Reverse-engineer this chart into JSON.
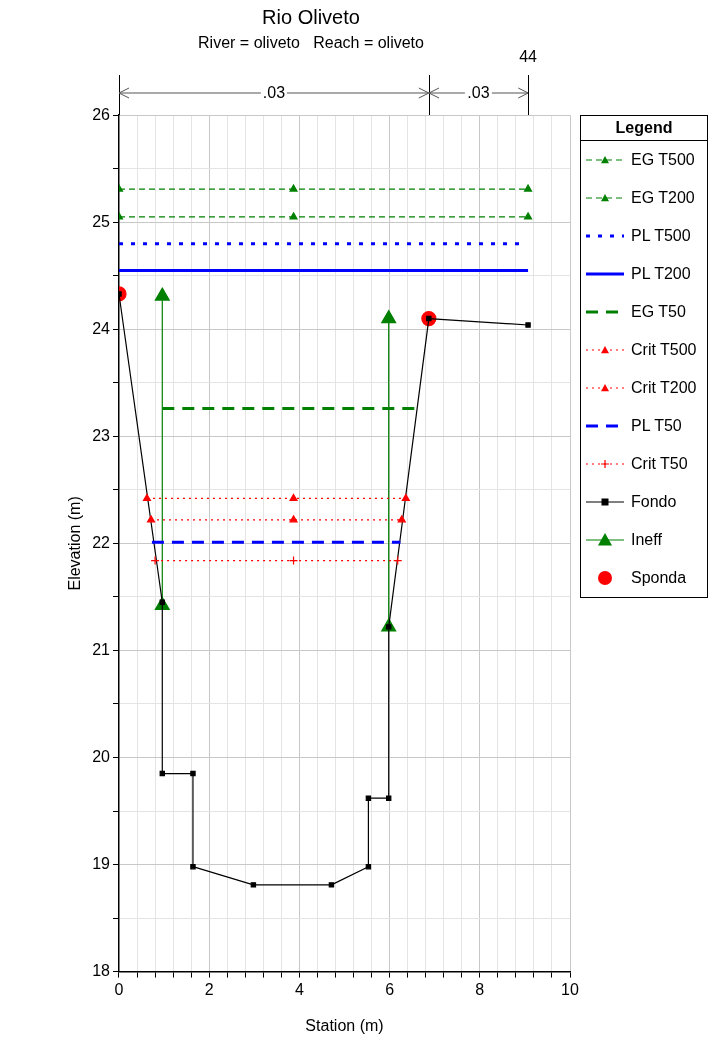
{
  "chart_data": {
    "type": "line",
    "title": "Rio Oliveto",
    "subtitle": "River = oliveto   Reach = oliveto",
    "xlabel": "Station (m)",
    "ylabel": "Elevation (m)",
    "legend_title": "Legend",
    "legend": "right",
    "grid": true,
    "xlim": [
      0,
      10
    ],
    "ylim": [
      18,
      26
    ],
    "xticks": [
      0,
      {
        "value": 0.4,
        "label": null
      },
      {
        "value": 0.8,
        "label": null
      },
      {
        "value": 1.2,
        "label": null
      },
      {
        "value": 1.6,
        "label": null
      },
      2,
      {
        "value": 2.4,
        "label": null
      },
      {
        "value": 2.8,
        "label": null
      },
      {
        "value": 3.2,
        "label": null
      },
      {
        "value": 3.6,
        "label": null
      },
      4,
      {
        "value": 4.4,
        "label": null
      },
      {
        "value": 4.8,
        "label": null
      },
      {
        "value": 5.2,
        "label": null
      },
      {
        "value": 5.6,
        "label": null
      },
      6,
      {
        "value": 6.4,
        "label": null
      },
      {
        "value": 6.8,
        "label": null
      },
      {
        "value": 7.2,
        "label": null
      },
      {
        "value": 7.6,
        "label": null
      },
      8,
      {
        "value": 8.4,
        "label": null
      },
      {
        "value": 8.8,
        "label": null
      },
      {
        "value": 9.2,
        "label": null
      },
      {
        "value": 9.6,
        "label": null
      },
      10
    ],
    "yticks": [
      18,
      {
        "value": 18.5,
        "label": null
      },
      19,
      {
        "value": 19.5,
        "label": null
      },
      20,
      {
        "value": 20.5,
        "label": null
      },
      21,
      {
        "value": 21.5,
        "label": null
      },
      22,
      {
        "value": 22.5,
        "label": null
      },
      23,
      {
        "value": 23.5,
        "label": null
      },
      24,
      {
        "value": 24.5,
        "label": null
      },
      25,
      {
        "value": 25.5,
        "label": null
      },
      26
    ],
    "annotations": [
      ".03",
      ".03",
      "44"
    ],
    "series": [
      {
        "name": "EG T500",
        "type": "line",
        "color": "#008000",
        "line_style": "dashed",
        "marker": "triangle",
        "x": [
          0,
          3.87,
          9.07
        ],
        "values": [
          25.31,
          25.31,
          25.31
        ]
      },
      {
        "name": "EG T200",
        "type": "line",
        "color": "#008000",
        "line_style": "dashed",
        "marker": "triangle",
        "x": [
          0,
          3.87,
          9.07
        ],
        "values": [
          25.05,
          25.05,
          25.05
        ]
      },
      {
        "name": "PL T500",
        "type": "line",
        "color": "#0000ff",
        "line_style": "dotted",
        "marker": "none",
        "x": [
          0,
          8.96
        ],
        "values": [
          24.8,
          24.8
        ]
      },
      {
        "name": "PL T200",
        "type": "line",
        "color": "#0000ff",
        "line_style": "solid",
        "marker": "none",
        "x": [
          0,
          9.07
        ],
        "values": [
          24.55,
          24.55
        ]
      },
      {
        "name": "EG T50",
        "type": "line",
        "color": "#008000",
        "line_style": "dashed",
        "marker": "none",
        "x": [
          0.96,
          6.58
        ],
        "values": [
          23.26,
          23.26
        ]
      },
      {
        "name": "Crit T500",
        "type": "line",
        "color": "#ff0000",
        "line_style": "dotted",
        "marker": "triangle",
        "x": [
          0.62,
          3.87,
          6.36
        ],
        "values": [
          22.42,
          22.42,
          22.42
        ]
      },
      {
        "name": "Crit T200",
        "type": "line",
        "color": "#ff0000",
        "line_style": "dotted",
        "marker": "triangle",
        "x": [
          0.71,
          3.87,
          6.27
        ],
        "values": [
          22.22,
          22.22,
          22.22
        ]
      },
      {
        "name": "PL T50",
        "type": "line",
        "color": "#0000ff",
        "line_style": "dashed",
        "marker": "none",
        "x": [
          0.73,
          6.24
        ],
        "values": [
          22.01,
          22.01
        ]
      },
      {
        "name": "Crit T50",
        "type": "line",
        "color": "#ff0000",
        "line_style": "dotted",
        "marker": "cross",
        "x": [
          0.8,
          3.87,
          6.18
        ],
        "values": [
          21.84,
          21.84,
          21.84
        ]
      },
      {
        "name": "Fondo",
        "type": "line",
        "color": "#000000",
        "line_style": "solid",
        "marker": "square",
        "x": [
          0,
          0.96,
          0.96,
          1.64,
          1.64,
          2.98,
          4.71,
          5.53,
          5.53,
          5.98,
          5.98,
          6.87,
          9.07
        ],
        "values": [
          24.33,
          21.45,
          19.85,
          19.85,
          18.98,
          18.81,
          18.81,
          18.98,
          19.62,
          19.62,
          21.22,
          24.1,
          24.04
        ]
      },
      {
        "name": "Ineff",
        "type": "line",
        "color": "#008000",
        "line_style": "solid",
        "marker": "triangle",
        "x": [
          0.96,
          0.96,
          null,
          5.98,
          5.98
        ],
        "values": [
          24.31,
          21.42,
          null,
          24.1,
          21.22
        ]
      },
      {
        "name": "Sponda",
        "type": "scatter",
        "color": "#ff0000",
        "marker": "circle",
        "x": [
          0,
          6.87
        ],
        "values": [
          24.33,
          24.1
        ]
      }
    ]
  }
}
